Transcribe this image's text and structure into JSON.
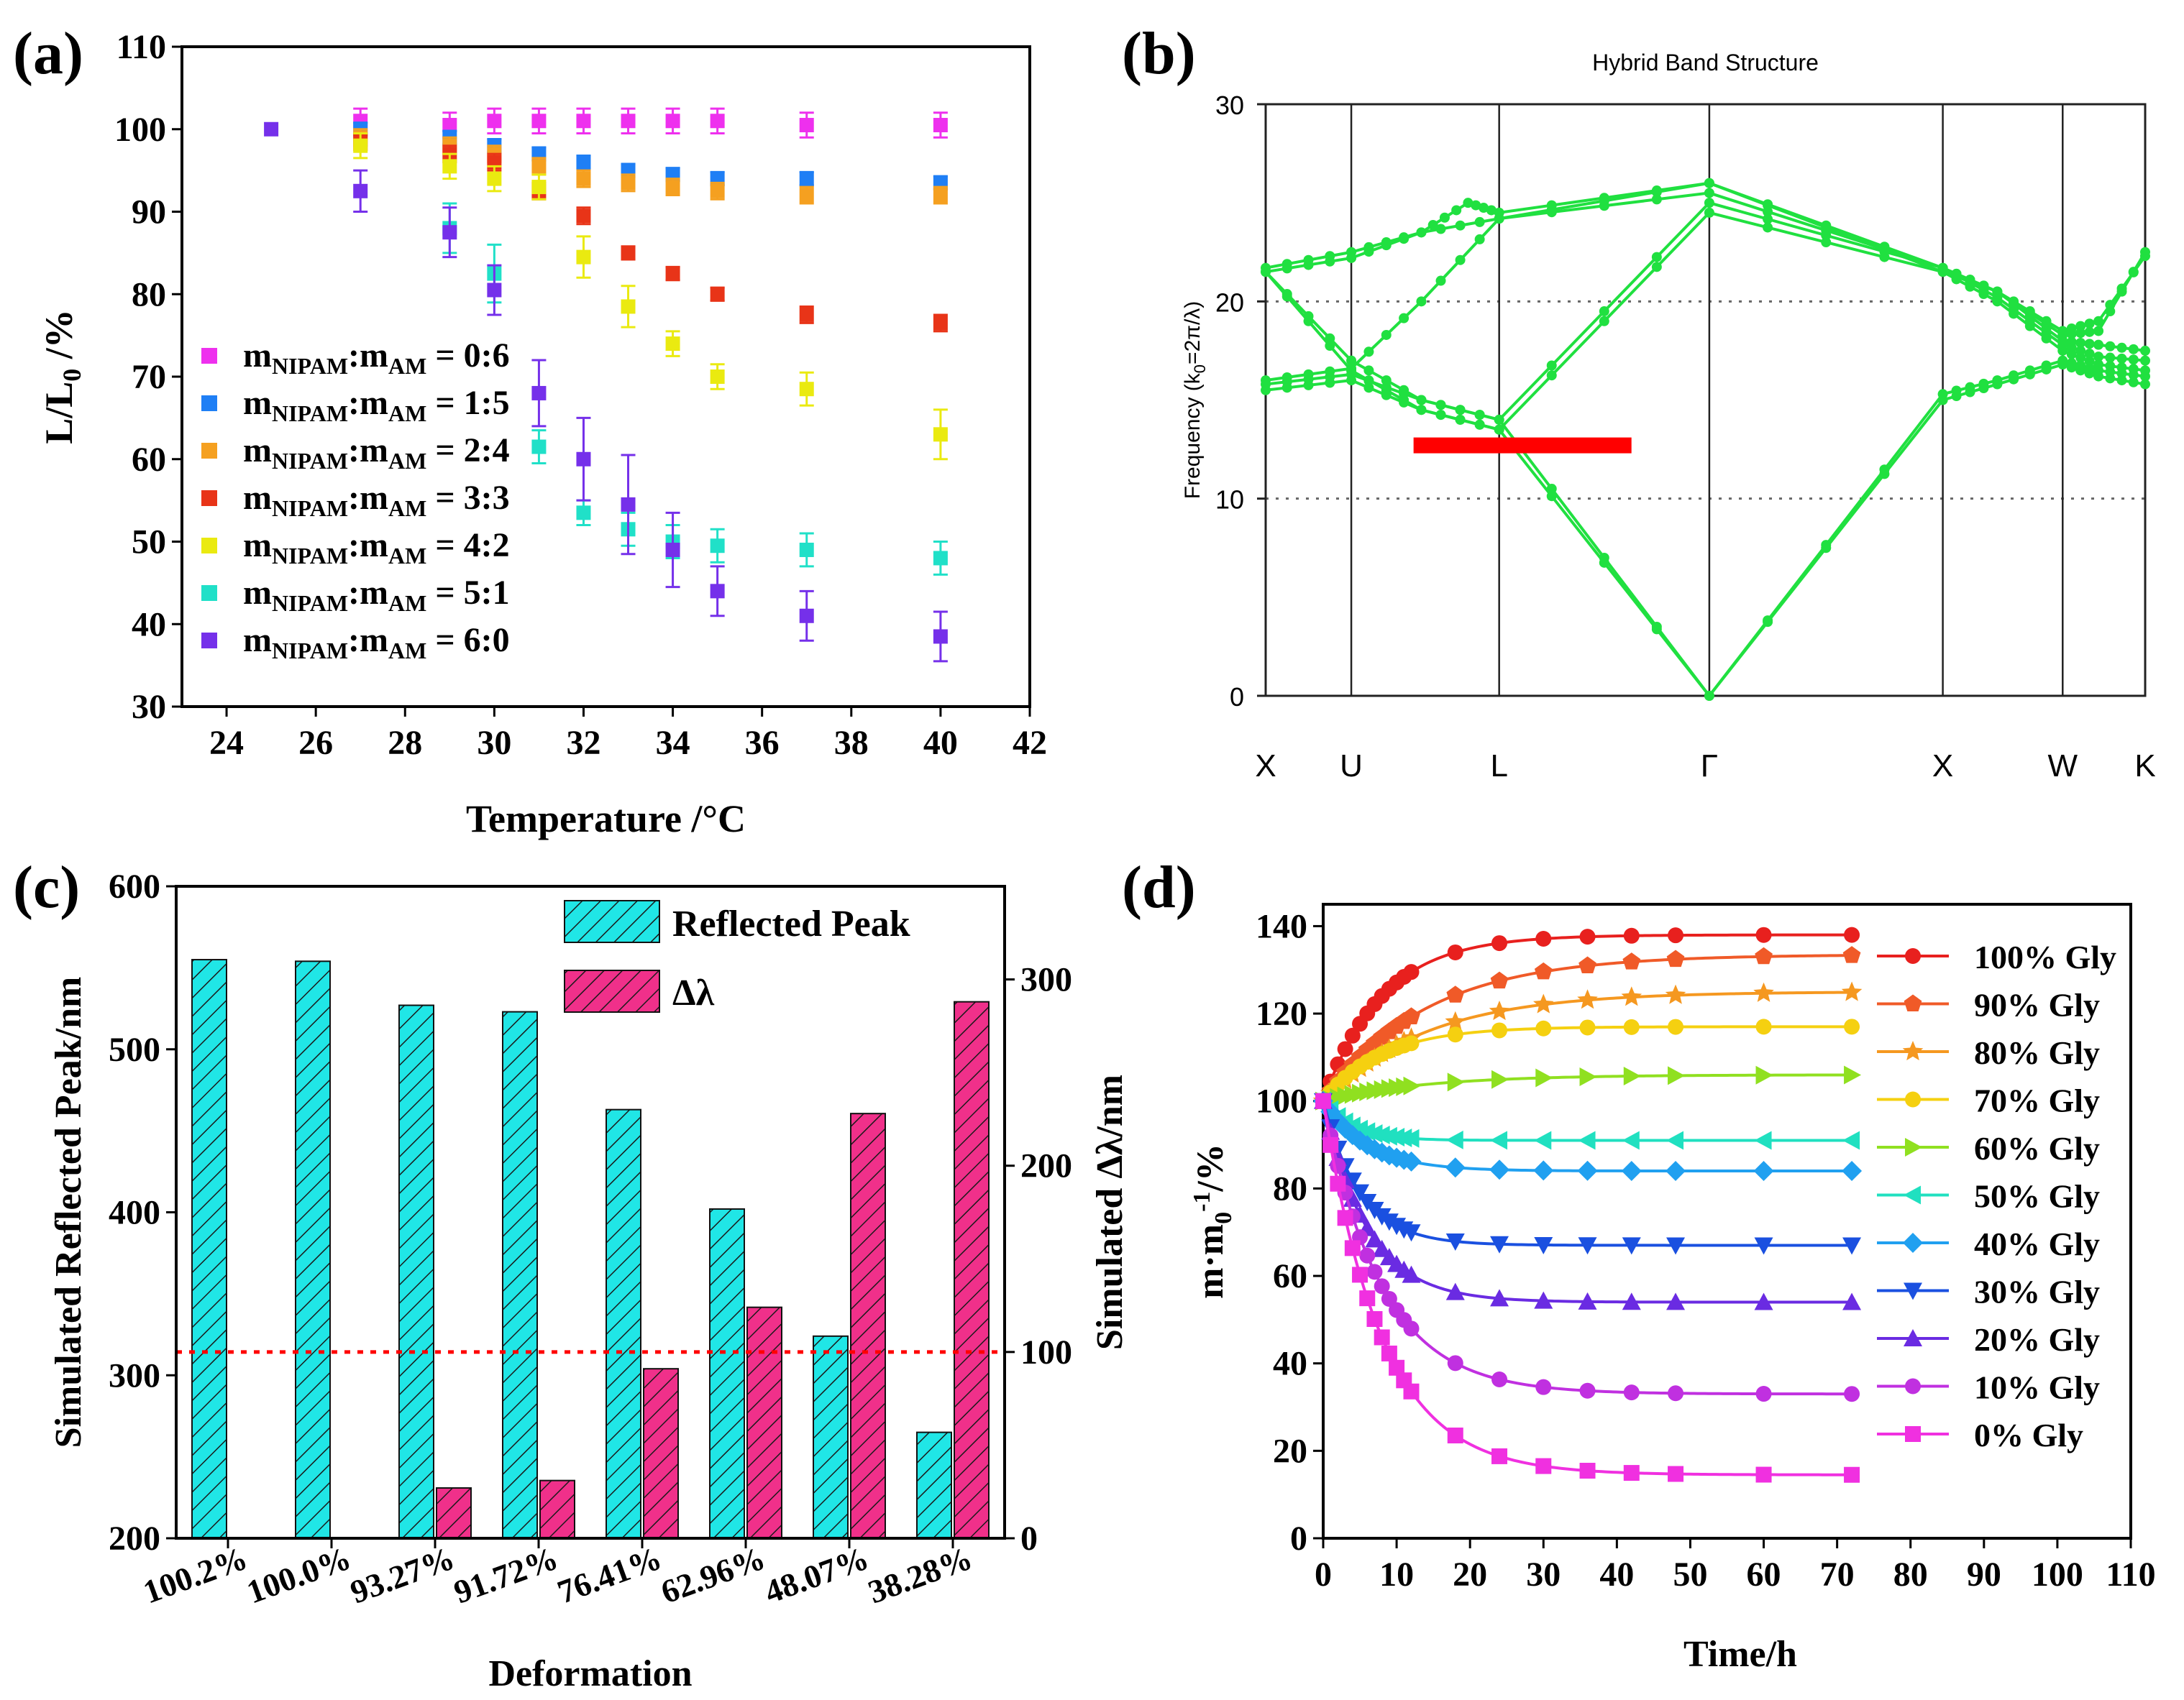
{
  "colors": {
    "magenta": "#ee30ee",
    "blue": "#1f7ff5",
    "orange": "#f5a020",
    "red": "#e83418",
    "yellow": "#eaea10",
    "cyan": "#20e0c8",
    "purple": "#7530ea",
    "green": "#20e040",
    "barRed": "#ff0000",
    "barCyan": "#20e6e6",
    "barPink": "#f0308a"
  },
  "chart_data": [
    {
      "panel": "(a)",
      "type": "scatter",
      "xlabel": "Temperature /°C",
      "ylabel": "L/L",
      "ylabel_sub": "0",
      "ylabel_suffix": " /%",
      "xlim": [
        23,
        42
      ],
      "ylim": [
        30,
        110
      ],
      "xticks": [
        24,
        26,
        28,
        30,
        32,
        34,
        36,
        38,
        40,
        42
      ],
      "yticks": [
        30,
        40,
        50,
        60,
        70,
        80,
        90,
        100,
        110
      ],
      "legend_prefix": "m",
      "legend_sub1": "NIPAM",
      "legend_mid": ":m",
      "legend_sub2": "AM",
      "series": [
        {
          "name": "0:6",
          "label": " = 0:6",
          "color": "magenta",
          "x": [
            27,
            29,
            30,
            31,
            32,
            33,
            34,
            35,
            37,
            40
          ],
          "y": [
            101,
            100.5,
            101,
            101,
            101,
            101,
            101,
            101,
            100.5,
            100.5
          ],
          "err": [
            1.5,
            1.5,
            1.5,
            1.5,
            1.5,
            1.5,
            1.5,
            1.5,
            1.5,
            1.5
          ]
        },
        {
          "name": "1:5",
          "label": " = 1:5",
          "color": "blue",
          "x": [
            27,
            29,
            30,
            31,
            32,
            33,
            34,
            35,
            37,
            40
          ],
          "y": [
            100,
            99,
            98,
            97,
            96,
            95,
            94.5,
            94,
            94,
            93.5
          ],
          "err": [
            0.8,
            0.8,
            0.8,
            0.8,
            0.8,
            0.8,
            0.8,
            0.8,
            0.8,
            0.8
          ]
        },
        {
          "name": "2:4",
          "label": " = 2:4",
          "color": "orange",
          "x": [
            27,
            29,
            30,
            31,
            32,
            33,
            34,
            35,
            37,
            40
          ],
          "y": [
            99,
            98,
            97,
            95.5,
            94,
            93.5,
            93,
            92.5,
            92,
            92
          ],
          "err": [
            1,
            1,
            1,
            1,
            1,
            1,
            1,
            1,
            1,
            1
          ]
        },
        {
          "name": "3:3",
          "label": " = 3:3",
          "color": "red",
          "x": [
            27,
            29,
            30,
            31,
            32,
            33,
            34,
            35,
            37,
            40
          ],
          "y": [
            98.5,
            97,
            96,
            92.5,
            89.5,
            85,
            82.5,
            80,
            77.5,
            76.5
          ],
          "err": [
            1,
            1,
            1,
            1,
            1,
            0.8,
            0.8,
            0.8,
            1,
            1
          ]
        },
        {
          "name": "4:2",
          "label": " = 4:2",
          "color": "yellow",
          "x": [
            27,
            29,
            30,
            31,
            32,
            33,
            34,
            35,
            37,
            40
          ],
          "y": [
            98,
            95.5,
            94,
            93,
            84.5,
            78.5,
            74,
            70,
            68.5,
            63
          ],
          "err": [
            1.5,
            1.5,
            1.5,
            1.5,
            2.5,
            2.5,
            1.5,
            1.5,
            2,
            3
          ]
        },
        {
          "name": "5:1",
          "label": " = 5:1",
          "color": "cyan",
          "x": [
            29,
            30,
            31,
            32,
            33,
            34,
            35,
            37,
            40
          ],
          "y": [
            88,
            82.5,
            61.5,
            53.5,
            51.5,
            50,
            49.5,
            49,
            48
          ],
          "err": [
            3,
            3.5,
            2,
            1.5,
            2,
            2,
            2,
            2,
            2
          ]
        },
        {
          "name": "6:0",
          "label": " = 6:0",
          "color": "purple",
          "x": [
            25,
            27,
            29,
            30,
            31,
            32,
            33,
            34,
            35,
            37,
            40
          ],
          "y": [
            100,
            92.5,
            87.5,
            80.5,
            68,
            60,
            54.5,
            49,
            44,
            41,
            38.5
          ],
          "err": [
            0,
            2.5,
            3,
            3,
            4,
            5,
            6,
            4.5,
            3,
            3,
            3
          ]
        }
      ]
    },
    {
      "panel": "(b)",
      "type": "line",
      "title": "Hybrid Band Structure",
      "ylabel": "Frequency (k",
      "ylabel_sub": "0",
      "ylabel_suffix": "=2π/λ)",
      "ylim": [
        0,
        30
      ],
      "yticks": [
        0,
        10,
        20,
        30
      ],
      "dotted_lines": [
        10,
        20
      ],
      "kpoints": [
        "X",
        "U",
        "L",
        "Γ",
        "X",
        "W",
        "K"
      ],
      "kpos": [
        0,
        0.55,
        1.5,
        2.85,
        4.35,
        5.12,
        5.65
      ],
      "band_gap_bar": {
        "x_from": 0.95,
        "x_to": 2.35,
        "y": 12.7
      },
      "bands": [
        {
          "x": [
            0,
            0.55,
            1.0,
            1.5,
            2.85,
            4.35,
            4.7,
            5.12,
            5.35,
            5.65
          ],
          "y": [
            21.5,
            17,
            15,
            14,
            0,
            15,
            15.8,
            16.8,
            16.2,
            15.8
          ]
        },
        {
          "x": [
            0,
            0.55,
            1.0,
            1.5,
            2.85,
            4.35,
            4.7,
            5.12,
            5.35,
            5.65
          ],
          "y": [
            21.5,
            16.5,
            14.5,
            13.5,
            0,
            15.3,
            16,
            17,
            16.5,
            16.2
          ]
        },
        {
          "x": [
            0,
            0.55,
            1.0,
            1.5,
            2.85,
            4.35,
            4.7,
            5.12,
            5.35,
            5.65
          ],
          "y": [
            15.5,
            16,
            14.5,
            13.5,
            24.5,
            21.5,
            20,
            17.5,
            16.8,
            16.5
          ]
        },
        {
          "x": [
            0,
            0.55,
            1.0,
            1.5,
            2.85,
            4.35,
            4.7,
            5.12,
            5.35,
            5.65
          ],
          "y": [
            15.8,
            16.3,
            15,
            14,
            25,
            21.7,
            20.2,
            17.8,
            17.2,
            17
          ]
        },
        {
          "x": [
            0,
            0.55,
            1.0,
            1.5,
            2.85,
            4.35,
            4.7,
            5.12,
            5.35,
            5.65
          ],
          "y": [
            16,
            16.6,
            20,
            24.2,
            25.5,
            21.7,
            20.5,
            18,
            17.8,
            17.5
          ]
        },
        {
          "x": [
            0,
            0.55,
            1.0,
            1.5,
            2.85,
            4.35,
            4.7,
            5.12,
            5.35,
            5.65
          ],
          "y": [
            21.5,
            22.2,
            23.5,
            24.2,
            26,
            21.5,
            20.5,
            18.5,
            19,
            22.3
          ]
        },
        {
          "x": [
            0,
            0.55,
            1.0,
            1.3,
            1.5,
            2.85,
            4.35,
            4.7,
            5.12,
            5.35,
            5.65
          ],
          "y": [
            21.7,
            22.5,
            23.5,
            25,
            24.5,
            26,
            21.7,
            20.5,
            18.3,
            18.5,
            22.5
          ]
        }
      ]
    },
    {
      "panel": "(c)",
      "type": "bar",
      "categories": [
        "100.2%",
        "100.0%",
        "93.27%",
        "91.72%",
        "76.41%",
        "62.96%",
        "48.07%",
        "38.28%"
      ],
      "xlabel": "Deformation",
      "ylabel_left": "Simulated Reflected Peak/nm",
      "ylabel_right": "Simulated Δλ/nm",
      "ylim_left": [
        200,
        600
      ],
      "ylim_right": [
        0,
        350
      ],
      "yticks_left": [
        200,
        300,
        400,
        500,
        600
      ],
      "yticks_right": [
        0,
        100,
        200,
        300
      ],
      "reference_line_right": 100,
      "series": [
        {
          "name": "Reflected Peak",
          "axis": "left",
          "color": "barCyan",
          "values": [
            555,
            554,
            527,
            523,
            463,
            402,
            324,
            265
          ]
        },
        {
          "name": "Δλ",
          "axis": "right",
          "color": "barPink",
          "values": [
            0,
            0,
            27,
            31,
            91,
            124,
            228,
            288
          ]
        }
      ]
    },
    {
      "panel": "(d)",
      "type": "line",
      "xlabel": "Time/h",
      "ylabel": "m·m",
      "ylabel_sub": "0",
      "ylabel_sup": "-1",
      "ylabel_suffix": "/%",
      "xlim": [
        0,
        110
      ],
      "ylim": [
        0,
        145
      ],
      "xticks": [
        0,
        10,
        20,
        30,
        40,
        50,
        60,
        70,
        80,
        90,
        100,
        110
      ],
      "yticks": [
        0,
        20,
        40,
        60,
        80,
        100,
        120,
        140
      ],
      "series": [
        {
          "name": "100% Gly",
          "color": "#e8201e",
          "marker": "circle",
          "plateau": 138,
          "tau": 8
        },
        {
          "name": "90% Gly",
          "color": "#f05a28",
          "marker": "pentagon",
          "plateau": 133.5,
          "tau": 14
        },
        {
          "name": "80% Gly",
          "color": "#f59820",
          "marker": "star",
          "plateau": 125,
          "tau": 14
        },
        {
          "name": "70% Gly",
          "color": "#f5d010",
          "marker": "circle",
          "plateau": 117,
          "tau": 8
        },
        {
          "name": "60% Gly",
          "color": "#90e020",
          "marker": "tri-right",
          "plateau": 106,
          "tau": 14
        },
        {
          "name": "50% Gly",
          "color": "#20e0c0",
          "marker": "tri-left",
          "plateau": 91,
          "tau": 4
        },
        {
          "name": "40% Gly",
          "color": "#20a0f0",
          "marker": "diamond",
          "plateau": 84,
          "tau": 6
        },
        {
          "name": "30% Gly",
          "color": "#1a50e0",
          "marker": "tri-down",
          "plateau": 67,
          "tau": 5
        },
        {
          "name": "20% Gly",
          "color": "#6a2be2",
          "marker": "tri-up",
          "plateau": 54,
          "tau": 6
        },
        {
          "name": "10% Gly",
          "color": "#c030e0",
          "marker": "circle",
          "plateau": 33,
          "tau": 8
        },
        {
          "name": "0% Gly",
          "color": "#f030e0",
          "marker": "square",
          "plateau": 14.5,
          "tau": 8
        }
      ],
      "time_points": [
        0,
        1,
        2,
        3,
        4,
        5,
        6,
        7,
        8,
        9,
        10,
        11,
        12,
        18,
        24,
        30,
        36,
        42,
        48,
        60,
        72
      ]
    }
  ]
}
